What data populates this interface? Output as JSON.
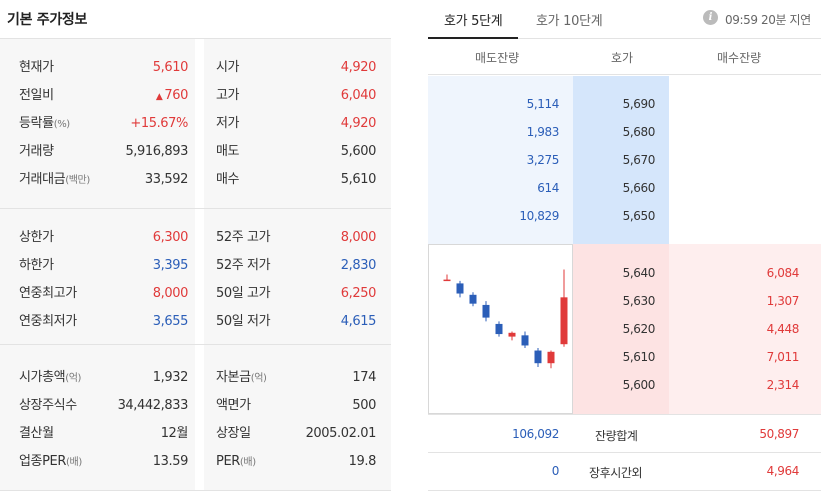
{
  "basic": {
    "title": "기본 주가정보",
    "sections": [
      {
        "rows": [
          {
            "l1": "현재가",
            "u1": "",
            "v1": "5,610",
            "c1": "red",
            "l2": "시가",
            "u2": "",
            "v2": "4,920",
            "c2": "red"
          },
          {
            "l1": "전일비",
            "u1": "",
            "v1": "760",
            "c1": "red",
            "l2": "고가",
            "u2": "",
            "v2": "6,040",
            "c2": "red"
          },
          {
            "l1": "등락률",
            "u1": "(%)",
            "v1": "+15.67%",
            "c1": "red",
            "l2": "저가",
            "u2": "",
            "v2": "4,920",
            "c2": "red"
          },
          {
            "l1": "거래량",
            "u1": "",
            "v1": "5,916,893",
            "c1": "black",
            "l2": "매도",
            "u2": "",
            "v2": "5,600",
            "c2": "black"
          },
          {
            "l1": "거래대금",
            "u1": "(백만)",
            "v1": "33,592",
            "c1": "black",
            "l2": "매수",
            "u2": "",
            "v2": "5,610",
            "c2": "black"
          }
        ]
      },
      {
        "rows": [
          {
            "l1": "상한가",
            "u1": "",
            "v1": "6,300",
            "c1": "red",
            "l2": "52주 고가",
            "u2": "",
            "v2": "8,000",
            "c2": "red"
          },
          {
            "l1": "하한가",
            "u1": "",
            "v1": "3,395",
            "c1": "blue",
            "l2": "52주 저가",
            "u2": "",
            "v2": "2,830",
            "c2": "blue"
          },
          {
            "l1": "연중최고가",
            "u1": "",
            "v1": "8,000",
            "c1": "red",
            "l2": "50일 고가",
            "u2": "",
            "v2": "6,250",
            "c2": "red"
          },
          {
            "l1": "연중최저가",
            "u1": "",
            "v1": "3,655",
            "c1": "blue",
            "l2": "50일 저가",
            "u2": "",
            "v2": "4,615",
            "c2": "blue"
          }
        ]
      },
      {
        "rows": [
          {
            "l1": "시가총액",
            "u1": "(억)",
            "v1": "1,932",
            "c1": "black",
            "l2": "자본금",
            "u2": "(억)",
            "v2": "174",
            "c2": "black"
          },
          {
            "l1": "상장주식수",
            "u1": "",
            "v1": "34,442,833",
            "c1": "black",
            "l2": "액면가",
            "u2": "",
            "v2": "500",
            "c2": "black"
          },
          {
            "l1": "결산월",
            "u1": "",
            "v1": "12월",
            "c1": "black",
            "l2": "상장일",
            "u2": "",
            "v2": "2005.02.01",
            "c2": "black"
          },
          {
            "l1": "업종PER",
            "u1": "(배)",
            "v1": "13.59",
            "c1": "black",
            "l2": "PER",
            "u2": "(배)",
            "v2": "19.8",
            "c2": "black"
          }
        ]
      }
    ]
  },
  "orderbook": {
    "tabs": [
      "호가 5단계",
      "호가 10단계"
    ],
    "info_icon": "info-icon",
    "delay_text": "09:59 20분 지연",
    "headers": {
      "sell": "매도잔량",
      "price": "호가",
      "buy": "매수잔량"
    },
    "sell": [
      {
        "qty": "5,114",
        "price": "5,690"
      },
      {
        "qty": "1,983",
        "price": "5,680"
      },
      {
        "qty": "3,275",
        "price": "5,670"
      },
      {
        "qty": "614",
        "price": "5,660"
      },
      {
        "qty": "10,829",
        "price": "5,650"
      }
    ],
    "buy": [
      {
        "price": "5,640",
        "qty": "6,084"
      },
      {
        "price": "5,630",
        "qty": "1,307"
      },
      {
        "price": "5,620",
        "qty": "4,448"
      },
      {
        "price": "5,610",
        "qty": "7,011"
      },
      {
        "price": "5,600",
        "qty": "2,314"
      }
    ],
    "totals": {
      "sell": "106,092",
      "label": "잔량합계",
      "buy": "50,897"
    },
    "after_hours": {
      "sell": "0",
      "label": "장후시간외",
      "buy": "4,964"
    }
  },
  "mini_chart": {
    "colors": {
      "up": "#e03a3a",
      "down": "#2b5eb8"
    },
    "ylim": [
      4900,
      6100
    ],
    "candles": [
      {
        "o": 5890,
        "h": 5930,
        "l": 5880,
        "c": 5890
      },
      {
        "o": 5860,
        "h": 5880,
        "l": 5750,
        "c": 5780
      },
      {
        "o": 5770,
        "h": 5790,
        "l": 5680,
        "c": 5700
      },
      {
        "o": 5690,
        "h": 5720,
        "l": 5560,
        "c": 5590
      },
      {
        "o": 5540,
        "h": 5560,
        "l": 5440,
        "c": 5460
      },
      {
        "o": 5440,
        "h": 5480,
        "l": 5410,
        "c": 5470
      },
      {
        "o": 5450,
        "h": 5480,
        "l": 5350,
        "c": 5370
      },
      {
        "o": 5330,
        "h": 5350,
        "l": 5200,
        "c": 5230
      },
      {
        "o": 5230,
        "h": 5330,
        "l": 5190,
        "c": 5320
      },
      {
        "o": 5380,
        "h": 5970,
        "l": 5360,
        "c": 5750
      }
    ]
  }
}
